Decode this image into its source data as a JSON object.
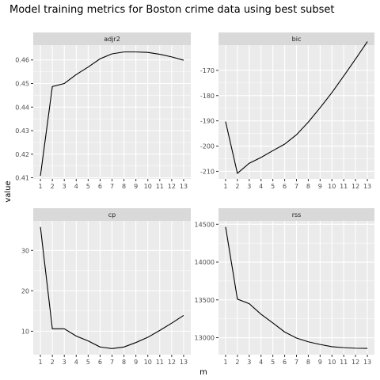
{
  "chart_data": {
    "type": "line",
    "title": "Model training metrics for Boston crime data using best subset",
    "xlabel": "m",
    "ylabel": "value",
    "x": [
      1,
      2,
      3,
      4,
      5,
      6,
      7,
      8,
      9,
      10,
      11,
      12,
      13
    ],
    "panels": [
      {
        "name": "adjr2",
        "ylim": [
          0.4095,
          0.4663
        ],
        "yticks": [
          0.41,
          0.42,
          0.43,
          0.44,
          0.45,
          0.46
        ],
        "ytick_labels": [
          "0.41",
          "0.42",
          "0.43",
          "0.44",
          "0.45",
          "0.46"
        ],
        "values": [
          0.4108,
          0.4487,
          0.45,
          0.4538,
          0.457,
          0.4605,
          0.4626,
          0.4634,
          0.4634,
          0.4632,
          0.4624,
          0.4613,
          0.4599
        ]
      },
      {
        "name": "bic",
        "ylim": [
          -213.0,
          -160.0
        ],
        "yticks": [
          -210,
          -200,
          -190,
          -180,
          -170
        ],
        "ytick_labels": [
          "-210",
          "-200",
          "-190",
          "-180",
          "-170"
        ],
        "values": [
          -190.3,
          -210.8,
          -206.8,
          -204.5,
          -201.8,
          -199.2,
          -195.5,
          -190.5,
          -184.8,
          -178.8,
          -172.2,
          -165.5,
          -158.6
        ]
      },
      {
        "name": "cp",
        "ylim": [
          4.2,
          37.3
        ],
        "yticks": [
          10,
          20,
          30
        ],
        "ytick_labels": [
          "10",
          "20",
          "30"
        ],
        "values": [
          35.8,
          10.6,
          10.6,
          8.8,
          7.6,
          6.1,
          5.7,
          6.1,
          7.2,
          8.5,
          10.2,
          12.0,
          13.9
        ]
      },
      {
        "name": "rss",
        "ylim": [
          12775,
          14545
        ],
        "yticks": [
          13000,
          13500,
          14000,
          14500
        ],
        "ytick_labels": [
          "13000",
          "13500",
          "14000",
          "14500"
        ],
        "values": [
          14465,
          13510,
          13450,
          13310,
          13195,
          13075,
          12995,
          12945,
          12910,
          12880,
          12868,
          12860,
          12858
        ]
      }
    ],
    "grid": true,
    "legend": "none",
    "colors": {
      "panel_background": "#ebebeb",
      "grid_major": "#ffffff",
      "strip_background": "#d9d9d9",
      "line": "#000000",
      "tick_text": "#4d4d4d"
    }
  }
}
